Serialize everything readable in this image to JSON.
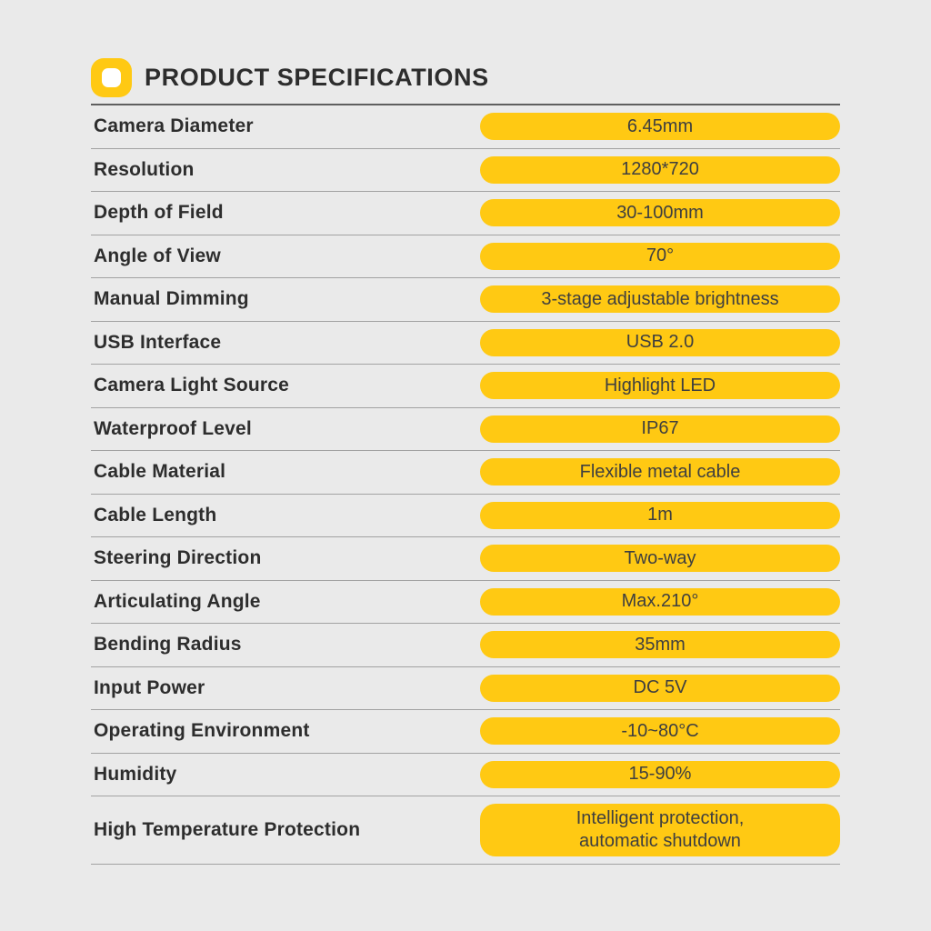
{
  "header": {
    "title": "PRODUCT SPECIFICATIONS",
    "icon": "squircle-ring-icon"
  },
  "colors": {
    "accent": "#FFC913",
    "background": "#EAEAEA",
    "label-text": "#2D2D2D",
    "pill-text": "#3F3F3F",
    "header-line": "#5F5F5F",
    "row-line": "#A2A2A2",
    "icon-hole": "#FFFFFF"
  },
  "table": {
    "rows": [
      {
        "label": "Camera Diameter",
        "value": "6.45mm"
      },
      {
        "label": "Resolution",
        "value": "1280*720"
      },
      {
        "label": "Depth of Field",
        "value": "30-100mm"
      },
      {
        "label": "Angle of View",
        "value": "70°"
      },
      {
        "label": "Manual Dimming",
        "value": "3-stage adjustable brightness"
      },
      {
        "label": "USB Interface",
        "value": "USB 2.0"
      },
      {
        "label": "Camera Light Source",
        "value": "Highlight LED"
      },
      {
        "label": "Waterproof Level",
        "value": "IP67"
      },
      {
        "label": "Cable Material",
        "value": "Flexible metal cable"
      },
      {
        "label": "Cable Length",
        "value": "1m"
      },
      {
        "label": "Steering Direction",
        "value": "Two-way"
      },
      {
        "label": "Articulating Angle",
        "value": "Max.210°"
      },
      {
        "label": "Bending Radius",
        "value": "35mm"
      },
      {
        "label": "Input Power",
        "value": "DC 5V"
      },
      {
        "label": "Operating Environment",
        "value": "-10~80°C"
      },
      {
        "label": "Humidity",
        "value": "15-90%"
      },
      {
        "label": "High Temperature Protection",
        "value": "Intelligent protection,\nautomatic shutdown",
        "tall": true
      }
    ]
  }
}
